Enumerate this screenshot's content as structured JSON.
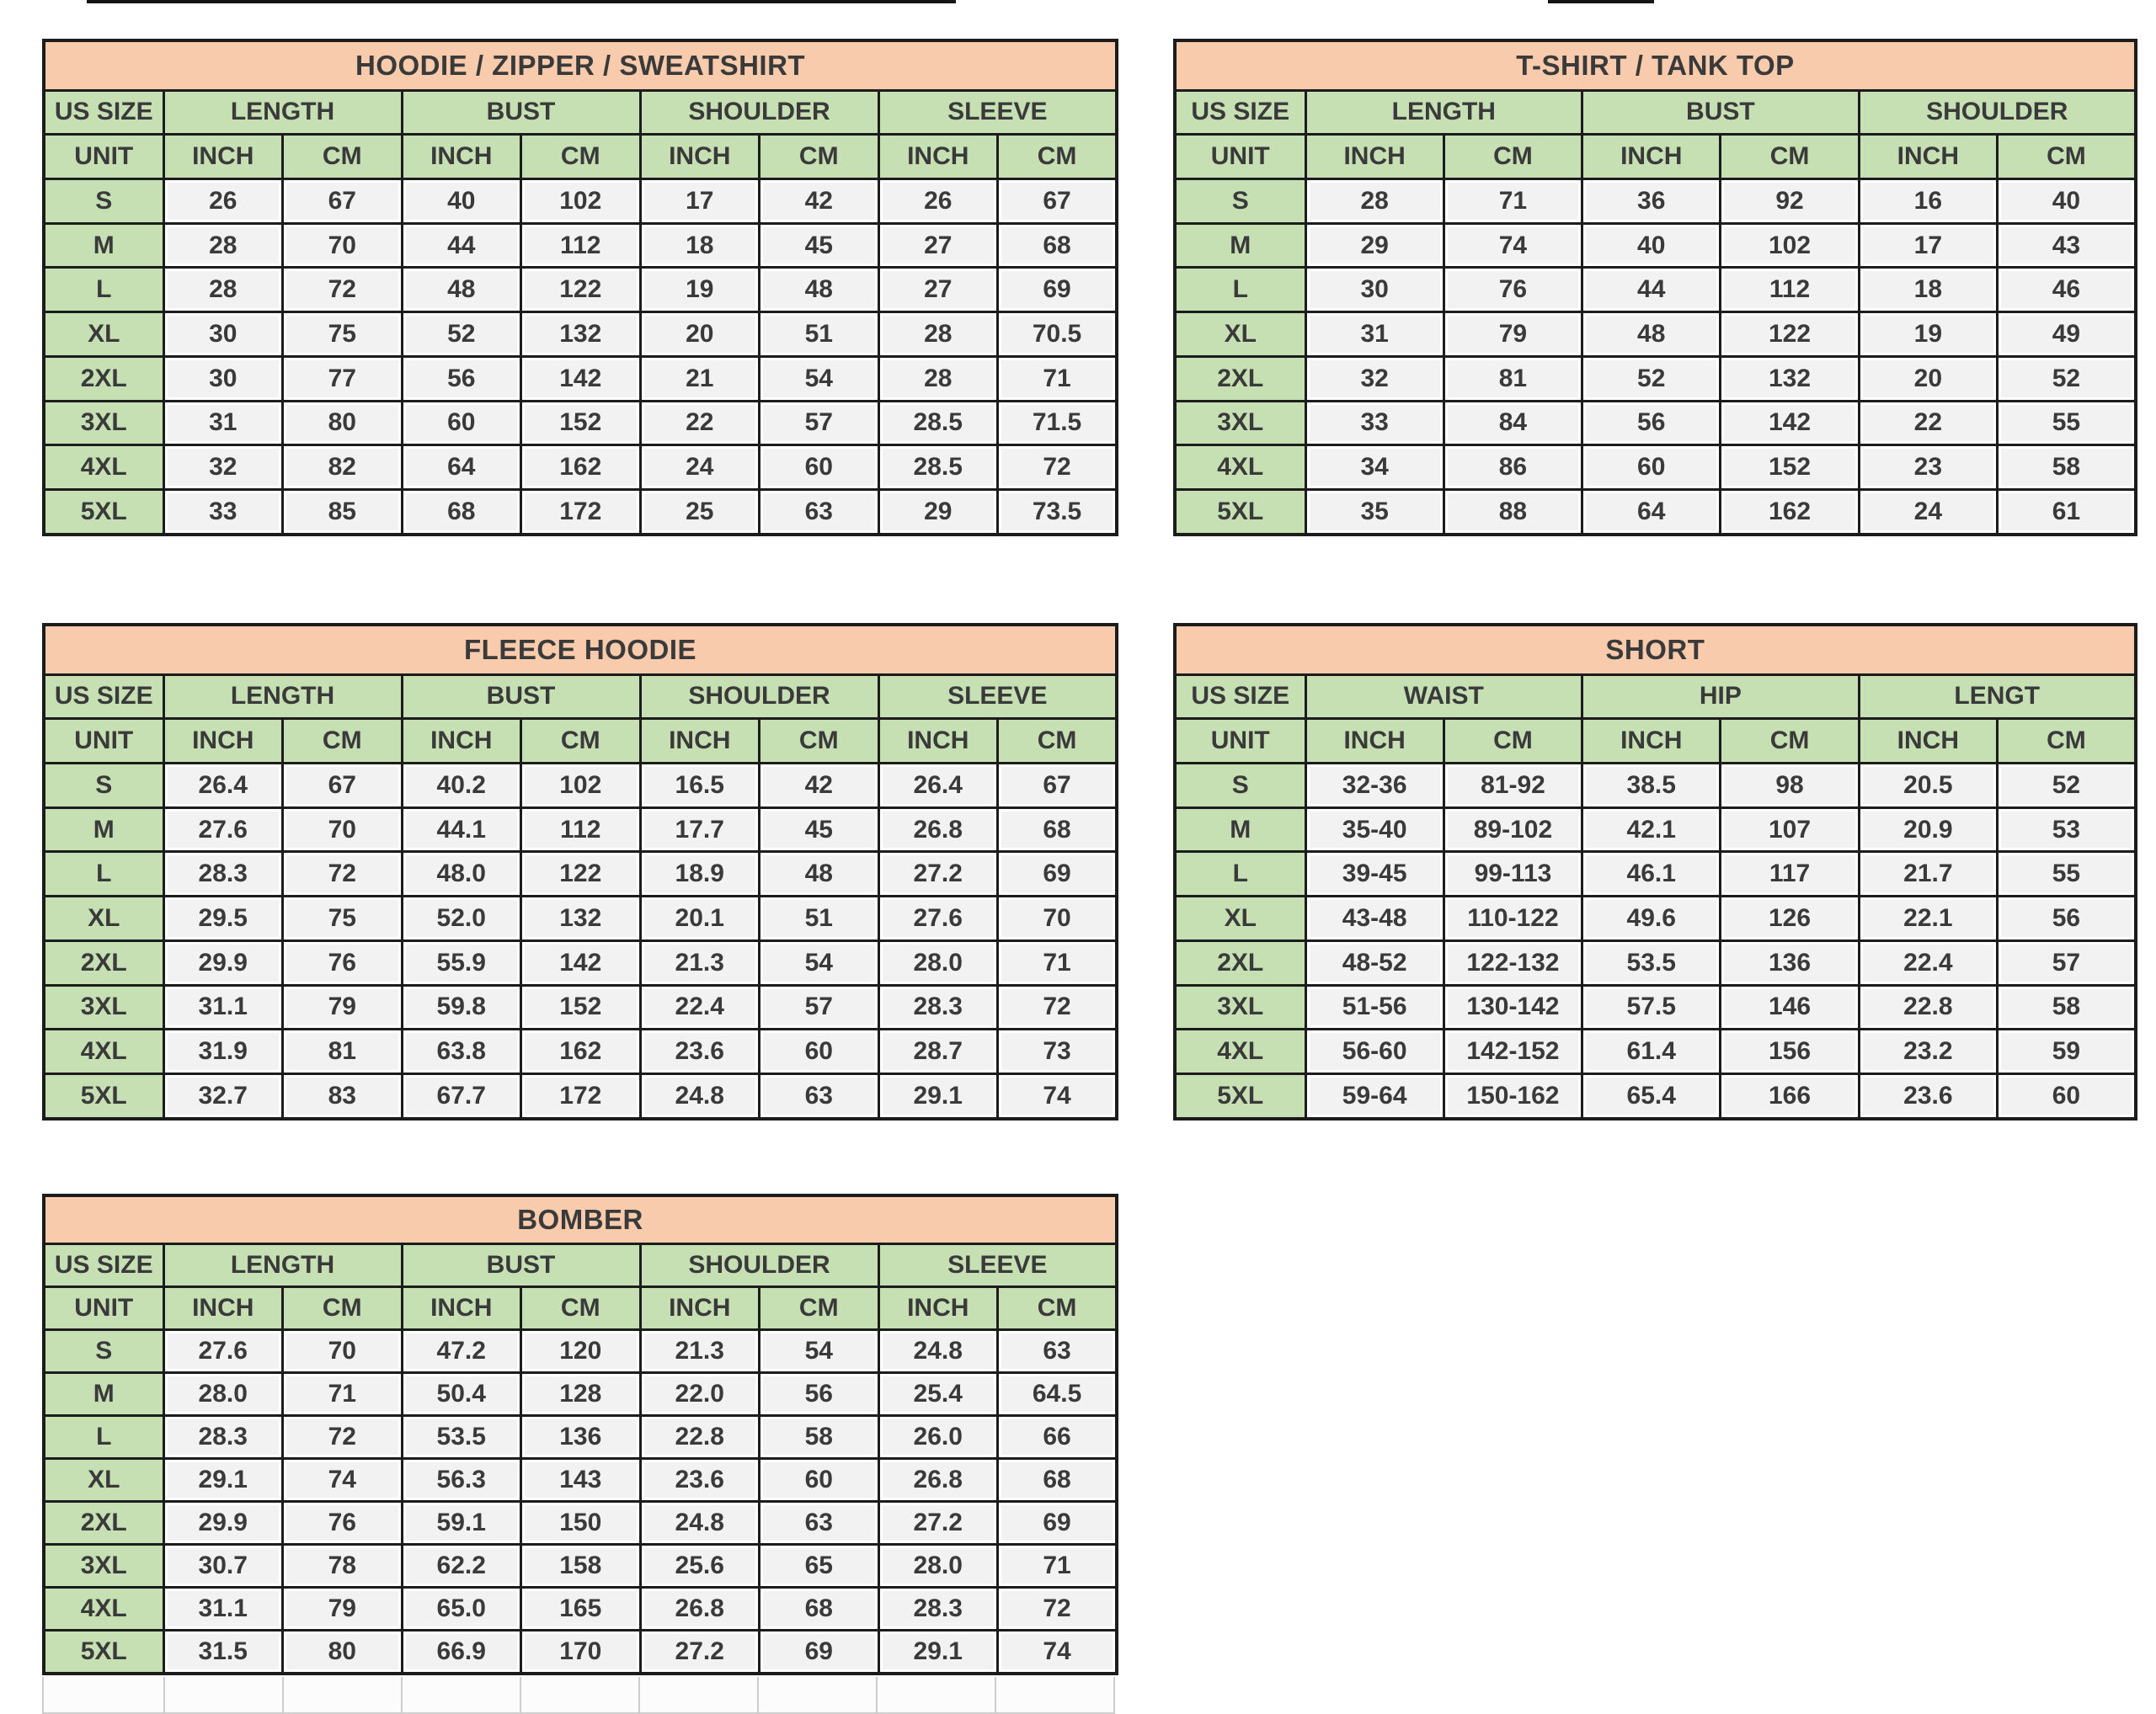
{
  "colors": {
    "title_bg": "#F8CBAD",
    "header_bg": "#C6E0B4",
    "cell_bg": "#F2F2F2",
    "border": "#1C1C1C",
    "text": "#3A3A3A",
    "page_bg": "#FFFFFF"
  },
  "shared": {
    "us_size": "US SIZE",
    "unit": "UNIT",
    "inch": "INCH",
    "cm": "CM",
    "sizes": [
      "S",
      "M",
      "L",
      "XL",
      "2XL",
      "3XL",
      "4XL",
      "5XL"
    ]
  },
  "tables": [
    {
      "key": "hoodie",
      "title": "HOODIE / ZIPPER / SWEATSHIRT",
      "columns": [
        "LENGTH",
        "BUST",
        "SHOULDER",
        "SLEEVE"
      ],
      "rows": [
        [
          "26",
          "67",
          "40",
          "102",
          "17",
          "42",
          "26",
          "67"
        ],
        [
          "28",
          "70",
          "44",
          "112",
          "18",
          "45",
          "27",
          "68"
        ],
        [
          "28",
          "72",
          "48",
          "122",
          "19",
          "48",
          "27",
          "69"
        ],
        [
          "30",
          "75",
          "52",
          "132",
          "20",
          "51",
          "28",
          "70.5"
        ],
        [
          "30",
          "77",
          "56",
          "142",
          "21",
          "54",
          "28",
          "71"
        ],
        [
          "31",
          "80",
          "60",
          "152",
          "22",
          "57",
          "28.5",
          "71.5"
        ],
        [
          "32",
          "82",
          "64",
          "162",
          "24",
          "60",
          "28.5",
          "72"
        ],
        [
          "33",
          "85",
          "68",
          "172",
          "25",
          "63",
          "29",
          "73.5"
        ]
      ]
    },
    {
      "key": "tshirt",
      "title": "T-SHIRT / TANK TOP",
      "columns": [
        "LENGTH",
        "BUST",
        "SHOULDER"
      ],
      "rows": [
        [
          "28",
          "71",
          "36",
          "92",
          "16",
          "40"
        ],
        [
          "29",
          "74",
          "40",
          "102",
          "17",
          "43"
        ],
        [
          "30",
          "76",
          "44",
          "112",
          "18",
          "46"
        ],
        [
          "31",
          "79",
          "48",
          "122",
          "19",
          "49"
        ],
        [
          "32",
          "81",
          "52",
          "132",
          "20",
          "52"
        ],
        [
          "33",
          "84",
          "56",
          "142",
          "22",
          "55"
        ],
        [
          "34",
          "86",
          "60",
          "152",
          "23",
          "58"
        ],
        [
          "35",
          "88",
          "64",
          "162",
          "24",
          "61"
        ]
      ]
    },
    {
      "key": "fleece",
      "title": "FLEECE HOODIE",
      "columns": [
        "LENGTH",
        "BUST",
        "SHOULDER",
        "SLEEVE"
      ],
      "rows": [
        [
          "26.4",
          "67",
          "40.2",
          "102",
          "16.5",
          "42",
          "26.4",
          "67"
        ],
        [
          "27.6",
          "70",
          "44.1",
          "112",
          "17.7",
          "45",
          "26.8",
          "68"
        ],
        [
          "28.3",
          "72",
          "48.0",
          "122",
          "18.9",
          "48",
          "27.2",
          "69"
        ],
        [
          "29.5",
          "75",
          "52.0",
          "132",
          "20.1",
          "51",
          "27.6",
          "70"
        ],
        [
          "29.9",
          "76",
          "55.9",
          "142",
          "21.3",
          "54",
          "28.0",
          "71"
        ],
        [
          "31.1",
          "79",
          "59.8",
          "152",
          "22.4",
          "57",
          "28.3",
          "72"
        ],
        [
          "31.9",
          "81",
          "63.8",
          "162",
          "23.6",
          "60",
          "28.7",
          "73"
        ],
        [
          "32.7",
          "83",
          "67.7",
          "172",
          "24.8",
          "63",
          "29.1",
          "74"
        ]
      ]
    },
    {
      "key": "short",
      "title": "SHORT",
      "columns": [
        "WAIST",
        "HIP",
        "LENGT"
      ],
      "rows": [
        [
          "32-36",
          "81-92",
          "38.5",
          "98",
          "20.5",
          "52"
        ],
        [
          "35-40",
          "89-102",
          "42.1",
          "107",
          "20.9",
          "53"
        ],
        [
          "39-45",
          "99-113",
          "46.1",
          "117",
          "21.7",
          "55"
        ],
        [
          "43-48",
          "110-122",
          "49.6",
          "126",
          "22.1",
          "56"
        ],
        [
          "48-52",
          "122-132",
          "53.5",
          "136",
          "22.4",
          "57"
        ],
        [
          "51-56",
          "130-142",
          "57.5",
          "146",
          "22.8",
          "58"
        ],
        [
          "56-60",
          "142-152",
          "61.4",
          "156",
          "23.2",
          "59"
        ],
        [
          "59-64",
          "150-162",
          "65.4",
          "166",
          "23.6",
          "60"
        ]
      ]
    },
    {
      "key": "bomber",
      "title": "BOMBER",
      "columns": [
        "LENGTH",
        "BUST",
        "SHOULDER",
        "SLEEVE"
      ],
      "rows": [
        [
          "27.6",
          "70",
          "47.2",
          "120",
          "21.3",
          "54",
          "24.8",
          "63"
        ],
        [
          "28.0",
          "71",
          "50.4",
          "128",
          "22.0",
          "56",
          "25.4",
          "64.5"
        ],
        [
          "28.3",
          "72",
          "53.5",
          "136",
          "22.8",
          "58",
          "26.0",
          "66"
        ],
        [
          "29.1",
          "74",
          "56.3",
          "143",
          "23.6",
          "60",
          "26.8",
          "68"
        ],
        [
          "29.9",
          "76",
          "59.1",
          "150",
          "24.8",
          "63",
          "27.2",
          "69"
        ],
        [
          "30.7",
          "78",
          "62.2",
          "158",
          "25.6",
          "65",
          "28.0",
          "71"
        ],
        [
          "31.1",
          "79",
          "65.0",
          "165",
          "26.8",
          "68",
          "28.3",
          "72"
        ],
        [
          "31.5",
          "80",
          "66.9",
          "170",
          "27.2",
          "69",
          "29.1",
          "74"
        ]
      ]
    }
  ]
}
